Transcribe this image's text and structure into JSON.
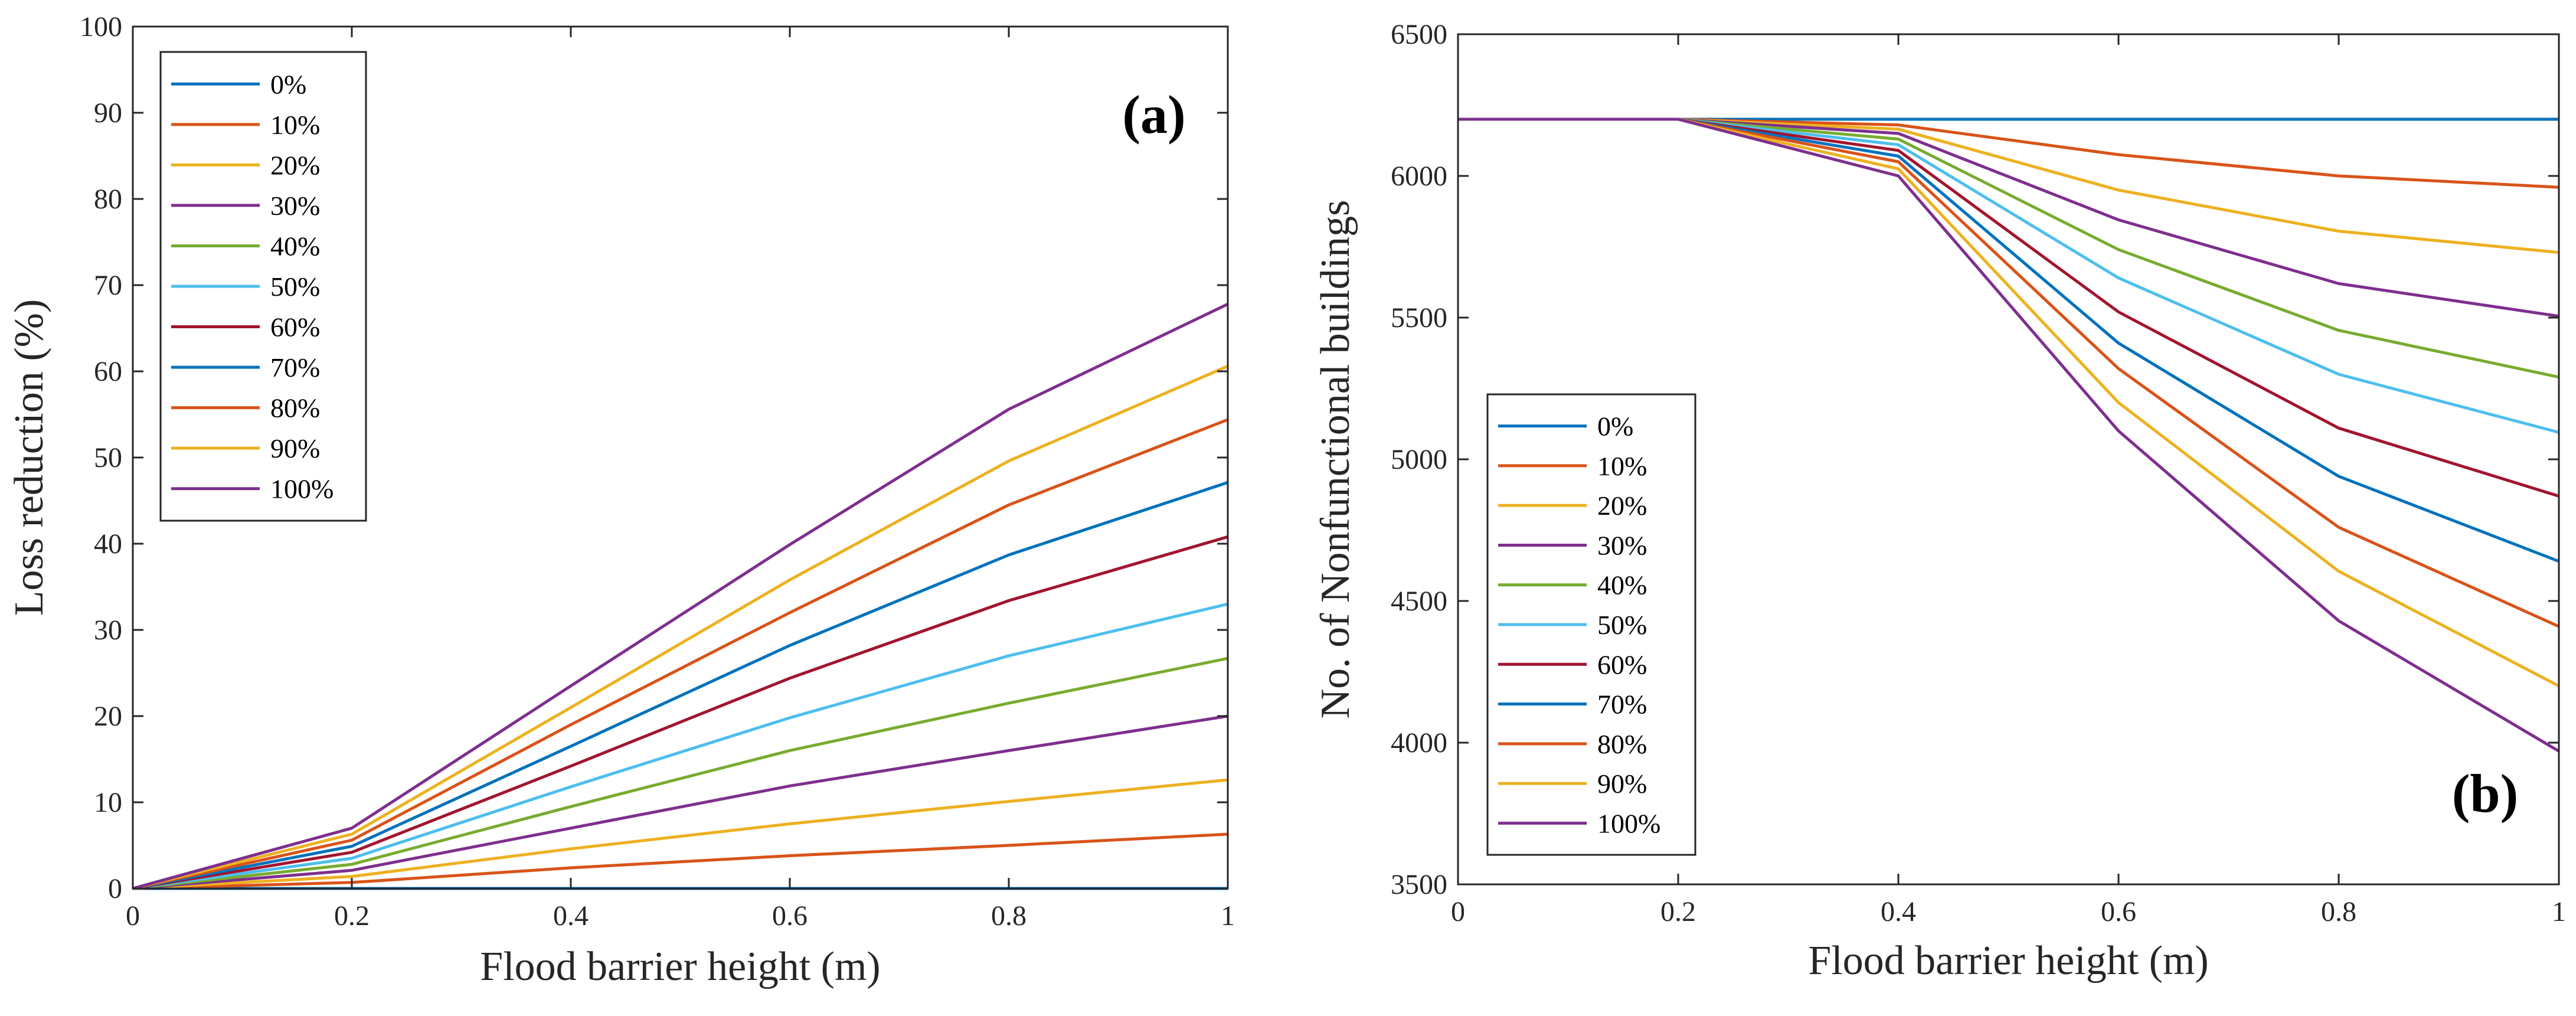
{
  "chart_data": [
    {
      "id": "a",
      "type": "line",
      "panel_label": "(a)",
      "xlabel": "Flood barrier height (m)",
      "ylabel": "Loss reduction (%)",
      "xlim": [
        0,
        1
      ],
      "ylim": [
        0,
        100
      ],
      "xticks": [
        0,
        0.2,
        0.4,
        0.6,
        0.8,
        1
      ],
      "xtick_labels": [
        "0",
        "0.2",
        "0.4",
        "0.6",
        "0.8",
        "1"
      ],
      "yticks": [
        0,
        10,
        20,
        30,
        40,
        50,
        60,
        70,
        80,
        90,
        100
      ],
      "ytick_labels": [
        "0",
        "10",
        "20",
        "30",
        "40",
        "50",
        "60",
        "70",
        "80",
        "90",
        "100"
      ],
      "grid": false,
      "legend_position": "top-left",
      "x": [
        0,
        0.2,
        0.4,
        0.6,
        0.8,
        1
      ],
      "series": [
        {
          "name": "0%",
          "color": "#0072BD",
          "values": [
            0,
            0,
            0,
            0,
            0,
            0
          ]
        },
        {
          "name": "10%",
          "color": "#D95319",
          "values": [
            0,
            0.7,
            2.4,
            3.8,
            5.0,
            6.3
          ]
        },
        {
          "name": "20%",
          "color": "#EDB120",
          "values": [
            0,
            1.4,
            4.6,
            7.5,
            10.1,
            12.6
          ]
        },
        {
          "name": "30%",
          "color": "#7E2F8E",
          "values": [
            0,
            2.1,
            7.0,
            11.9,
            16.0,
            20.0
          ]
        },
        {
          "name": "40%",
          "color": "#77AC30",
          "values": [
            0,
            2.8,
            9.5,
            16.0,
            21.5,
            26.7
          ]
        },
        {
          "name": "50%",
          "color": "#4DBEEE",
          "values": [
            0,
            3.5,
            11.8,
            19.8,
            27.0,
            33.0
          ]
        },
        {
          "name": "60%",
          "color": "#A2142F",
          "values": [
            0,
            4.2,
            14.2,
            24.4,
            33.4,
            40.8
          ]
        },
        {
          "name": "70%",
          "color": "#0072BD",
          "values": [
            0,
            4.9,
            16.5,
            28.2,
            38.7,
            47.1
          ]
        },
        {
          "name": "80%",
          "color": "#D95319",
          "values": [
            0,
            5.6,
            19.0,
            32.0,
            44.5,
            54.4
          ]
        },
        {
          "name": "90%",
          "color": "#EDB120",
          "values": [
            0,
            6.3,
            21.0,
            35.8,
            49.6,
            60.6
          ]
        },
        {
          "name": "100%",
          "color": "#7E2F8E",
          "values": [
            0,
            7.0,
            23.5,
            39.9,
            55.6,
            67.8
          ]
        }
      ]
    },
    {
      "id": "b",
      "type": "line",
      "panel_label": "(b)",
      "xlabel": "Flood barrier height (m)",
      "ylabel": "No. of Nonfunctional buildings",
      "xlim": [
        0,
        1
      ],
      "ylim": [
        3500,
        6500
      ],
      "xticks": [
        0,
        0.2,
        0.4,
        0.6,
        0.8,
        1
      ],
      "xtick_labels": [
        "0",
        "0.2",
        "0.4",
        "0.6",
        "0.8",
        "1"
      ],
      "yticks": [
        3500,
        4000,
        4500,
        5000,
        5500,
        6000,
        6500
      ],
      "ytick_labels": [
        "3500",
        "4000",
        "4500",
        "5000",
        "5500",
        "6000",
        "6500"
      ],
      "grid": false,
      "legend_position": "bottom-left",
      "x": [
        0,
        0.2,
        0.4,
        0.6,
        0.8,
        1
      ],
      "series": [
        {
          "name": "0%",
          "color": "#0072BD",
          "values": [
            6200,
            6200,
            6200,
            6200,
            6200,
            6200
          ]
        },
        {
          "name": "10%",
          "color": "#D95319",
          "values": [
            6200,
            6200,
            6180,
            6075,
            6000,
            5960
          ]
        },
        {
          "name": "20%",
          "color": "#EDB120",
          "values": [
            6200,
            6200,
            6165,
            5950,
            5805,
            5730
          ]
        },
        {
          "name": "30%",
          "color": "#7E2F8E",
          "values": [
            6200,
            6200,
            6150,
            5845,
            5620,
            5505
          ]
        },
        {
          "name": "40%",
          "color": "#77AC30",
          "values": [
            6200,
            6200,
            6130,
            5740,
            5455,
            5290
          ]
        },
        {
          "name": "50%",
          "color": "#4DBEEE",
          "values": [
            6200,
            6200,
            6110,
            5640,
            5300,
            5095
          ]
        },
        {
          "name": "60%",
          "color": "#A2142F",
          "values": [
            6200,
            6200,
            6090,
            5520,
            5110,
            4870
          ]
        },
        {
          "name": "70%",
          "color": "#0072BD",
          "values": [
            6200,
            6200,
            6070,
            5410,
            4940,
            4640
          ]
        },
        {
          "name": "80%",
          "color": "#D95319",
          "values": [
            6200,
            6200,
            6050,
            5320,
            4760,
            4410
          ]
        },
        {
          "name": "90%",
          "color": "#EDB120",
          "values": [
            6200,
            6200,
            6025,
            5200,
            4605,
            4200
          ]
        },
        {
          "name": "100%",
          "color": "#7E2F8E",
          "values": [
            6200,
            6200,
            6000,
            5100,
            4430,
            3970
          ]
        }
      ]
    }
  ]
}
